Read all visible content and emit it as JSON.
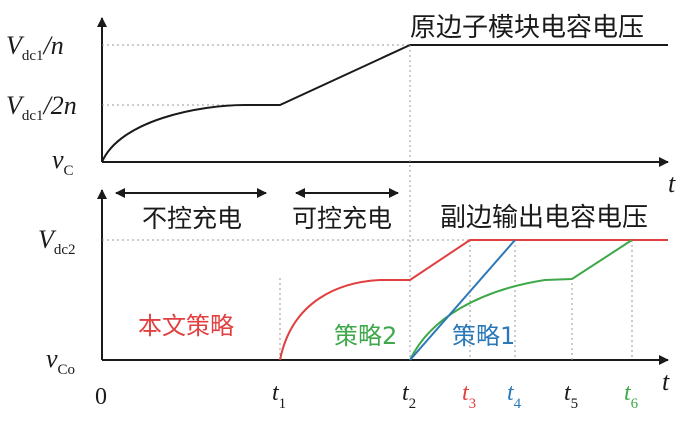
{
  "colors": {
    "axis": "#1a1a1a",
    "dotted": "#9a9a9a",
    "red": "#e04040",
    "green": "#3ea84a",
    "blue": "#2a78b8"
  },
  "top": {
    "y_label_high": {
      "main": "V",
      "sub": "dc1",
      "suffix": "/n"
    },
    "y_label_mid": {
      "main": "V",
      "sub": "dc1",
      "suffix": "/2n"
    },
    "y_label_low": {
      "main": "v",
      "sub": "C"
    },
    "x_axis_label": "t",
    "title": "原边子模块电容电压",
    "phase_uncontrolled": "不控充电",
    "phase_controlled": "可控充电"
  },
  "bottom": {
    "y_label_high": {
      "main": "V",
      "sub": "dc2"
    },
    "y_label_low": {
      "main": "v",
      "sub": "Co"
    },
    "x_axis_label": "t",
    "title": "副边输出电容电压",
    "legend_proposed": "本文策略",
    "legend_strategy2": "策略2",
    "legend_strategy1": "策略1",
    "ticks": {
      "origin": "0",
      "t1": {
        "main": "t",
        "sub": "1"
      },
      "t2": {
        "main": "t",
        "sub": "2"
      },
      "t3": {
        "main": "t",
        "sub": "3"
      },
      "t4": {
        "main": "t",
        "sub": "4"
      },
      "t5": {
        "main": "t",
        "sub": "5"
      },
      "t6": {
        "main": "t",
        "sub": "6"
      }
    }
  }
}
